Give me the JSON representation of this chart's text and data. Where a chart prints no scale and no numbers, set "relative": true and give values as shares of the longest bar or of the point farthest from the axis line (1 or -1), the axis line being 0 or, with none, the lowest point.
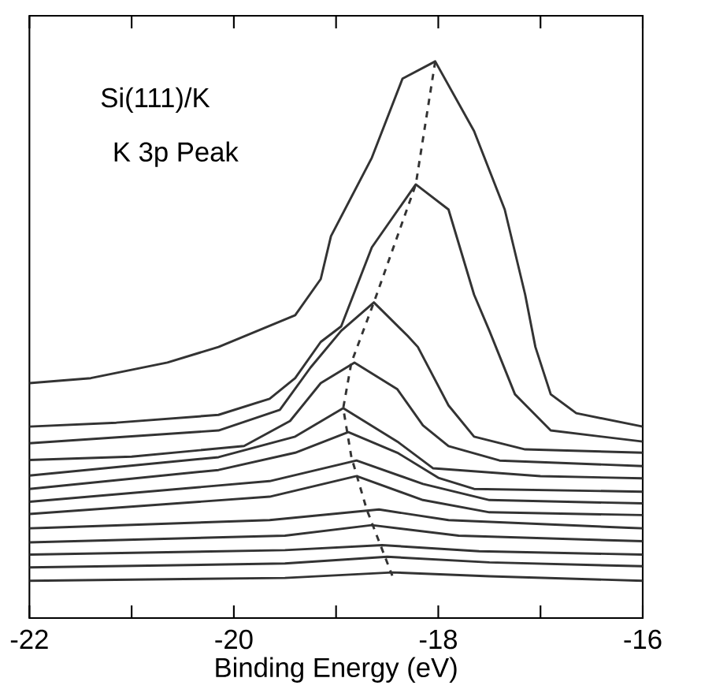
{
  "chart_data": {
    "type": "line",
    "relative": true,
    "xlabel": "Binding Energy (eV)",
    "annotations": [
      "Si(111)/K",
      "K 3p Peak"
    ],
    "xlim": [
      -22,
      -16
    ],
    "xticks": [
      -22,
      {
        "value": -21,
        "label": null
      },
      -20,
      {
        "value": -19,
        "label": null
      },
      -18,
      {
        "value": -17,
        "label": null
      },
      -16
    ],
    "grid": false,
    "series": [
      {
        "color": "#333333",
        "x": [
          -22,
          -21.4,
          -20.65,
          -20.15,
          -19.4,
          -19.15,
          -19.05,
          -18.65,
          -18.35,
          -18.03,
          -17.65,
          -17.35,
          -17.15,
          -17.05,
          -16.9,
          -16.65,
          -16
        ],
        "values": [
          0.422,
          0.431,
          0.459,
          0.487,
          0.544,
          0.609,
          0.686,
          0.827,
          0.969,
          1.0,
          0.875,
          0.734,
          0.581,
          0.487,
          0.402,
          0.368,
          0.344
        ]
      },
      {
        "color": "#333333",
        "x": [
          -22,
          -21.15,
          -20.15,
          -19.65,
          -19.4,
          -19.15,
          -18.95,
          -18.65,
          -18.22,
          -17.9,
          -17.65,
          -17.5,
          -17.25,
          -16.9,
          -16
        ],
        "values": [
          0.344,
          0.351,
          0.365,
          0.394,
          0.431,
          0.496,
          0.524,
          0.666,
          0.779,
          0.734,
          0.581,
          0.516,
          0.402,
          0.337,
          0.317
        ]
      },
      {
        "color": "#333333",
        "x": [
          -22,
          -20.15,
          -19.55,
          -19.25,
          -18.95,
          -18.63,
          -18.3,
          -18.2,
          -17.9,
          -17.65,
          -17.15,
          -16
        ],
        "values": [
          0.314,
          0.337,
          0.374,
          0.45,
          0.516,
          0.567,
          0.507,
          0.487,
          0.382,
          0.326,
          0.303,
          0.297
        ]
      },
      {
        "color": "#333333",
        "x": [
          -22,
          -21,
          -19.9,
          -19.45,
          -19.15,
          -18.82,
          -18.4,
          -18.15,
          -17.9,
          -17.4,
          -16
        ],
        "values": [
          0.284,
          0.29,
          0.309,
          0.354,
          0.422,
          0.459,
          0.411,
          0.346,
          0.309,
          0.283,
          0.273
        ]
      },
      {
        "color": "#333333",
        "x": [
          -22,
          -20.15,
          -19.4,
          -18.93,
          -18.4,
          -18.05,
          -17,
          -16
        ],
        "values": [
          0.256,
          0.289,
          0.326,
          0.377,
          0.317,
          0.269,
          0.255,
          0.251
        ]
      },
      {
        "color": "#333333",
        "x": [
          -22,
          -20.15,
          -19.4,
          -18.88,
          -18.4,
          -18.0,
          -17.65,
          -16
        ],
        "values": [
          0.232,
          0.266,
          0.297,
          0.334,
          0.297,
          0.252,
          0.232,
          0.227
        ]
      },
      {
        "color": "#333333",
        "x": [
          -22,
          -19.65,
          -18.8,
          -18.15,
          -17.5,
          -16
        ],
        "values": [
          0.209,
          0.246,
          0.283,
          0.241,
          0.212,
          0.206
        ]
      },
      {
        "color": "#333333",
        "x": [
          -22,
          -19.65,
          -18.8,
          -18.15,
          -17.5,
          -16
        ],
        "values": [
          0.187,
          0.218,
          0.255,
          0.212,
          0.19,
          0.185
        ]
      },
      {
        "color": "#333333",
        "x": [
          -22,
          -19.65,
          -18.58,
          -17.9,
          -16
        ],
        "values": [
          0.161,
          0.176,
          0.195,
          0.176,
          0.161
        ]
      },
      {
        "color": "#333333",
        "x": [
          -22,
          -19.5,
          -18.65,
          -17.8,
          -16
        ],
        "values": [
          0.136,
          0.148,
          0.167,
          0.148,
          0.138
        ]
      },
      {
        "color": "#333333",
        "x": [
          -22,
          -19.5,
          -18.55,
          -17.6,
          -16
        ],
        "values": [
          0.114,
          0.122,
          0.131,
          0.12,
          0.114
        ]
      },
      {
        "color": "#333333",
        "x": [
          -22,
          -19.5,
          -18.5,
          -17.5,
          -16
        ],
        "values": [
          0.091,
          0.098,
          0.11,
          0.1,
          0.093
        ]
      },
      {
        "color": "#333333",
        "x": [
          -22,
          -19.5,
          -18.45,
          -17.5,
          -16
        ],
        "values": [
          0.067,
          0.072,
          0.082,
          0.075,
          0.067
        ]
      },
      {
        "color": "#333333",
        "line_style": "dashed",
        "x": [
          -18.03,
          -18.22,
          -18.63,
          -18.85,
          -18.93,
          -18.85,
          -18.7,
          -18.45
        ],
        "values": [
          1.0,
          0.779,
          0.567,
          0.459,
          0.377,
          0.289,
          0.195,
          0.076
        ]
      }
    ]
  }
}
